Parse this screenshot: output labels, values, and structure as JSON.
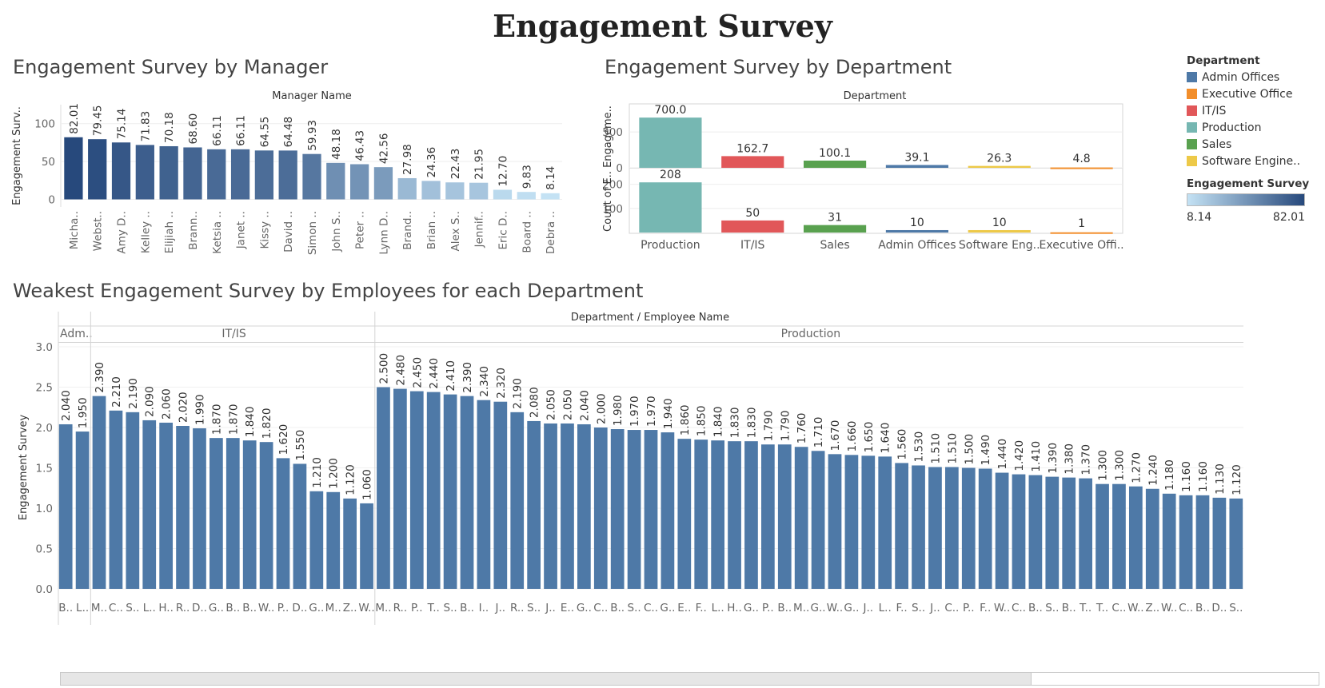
{
  "dashboard_title": "Engagement Survey",
  "sections": {
    "manager": "Engagement Survey by Manager",
    "department": "Engagement Survey by Department",
    "employees": "Weakest Engagement Survey by Employees for each Department"
  },
  "legend": {
    "title": "Department",
    "items": [
      {
        "label": "Admin Offices",
        "color": "#4e79a7"
      },
      {
        "label": "Executive Office",
        "color": "#f28e2b"
      },
      {
        "label": "IT/IS",
        "color": "#e15759"
      },
      {
        "label": "Production",
        "color": "#76b7b2"
      },
      {
        "label": "Sales",
        "color": "#59a14f"
      },
      {
        "label": "Software Engine..",
        "color": "#edc948"
      }
    ],
    "gradient_title": "Engagement Survey",
    "gradient_min": "8.14",
    "gradient_max": "82.01",
    "gradient_colors": [
      "#c4e2f4",
      "#27497c"
    ]
  },
  "scrollbar": {
    "visible_fraction": 0.77
  },
  "chart_data": [
    {
      "type": "bar",
      "title": "Engagement Survey by Manager",
      "header": "Manager Name",
      "ylabel": "Engagement Surv..",
      "ylim": [
        -10,
        125
      ],
      "yticks": [
        0,
        50,
        100
      ],
      "categories": [
        "Micha..",
        "Webst..",
        "Amy D..",
        "Kelley ..",
        "Elijiah ..",
        "Brann..",
        "Ketsia ..",
        "Janet ..",
        "Kissy ..",
        "David ..",
        "Simon ..",
        "John S..",
        "Peter ..",
        "Lynn D..",
        "Brand..",
        "Brian ..",
        "Alex S..",
        "Jennif..",
        "Eric D..",
        "Board ..",
        "Debra .."
      ],
      "values": [
        82.01,
        79.45,
        75.14,
        71.83,
        70.18,
        68.6,
        66.11,
        66.11,
        64.55,
        64.48,
        59.93,
        48.18,
        46.43,
        42.56,
        27.98,
        24.36,
        22.43,
        21.95,
        12.7,
        9.83,
        8.14
      ],
      "labels": [
        "82.01",
        "79.45",
        "75.14",
        "71.83",
        "70.18",
        "68.60",
        "66.11",
        "66.11",
        "64.55",
        "64.48",
        "59.93",
        "48.18",
        "46.43",
        "42.56",
        "27.98",
        "24.36",
        "22.43",
        "21.95",
        "12.70",
        "9.83",
        "8.14"
      ],
      "color_scale": [
        "#c4e2f4",
        "#27497c"
      ]
    },
    {
      "type": "bar",
      "title": "Engagement Survey by Department",
      "header": "Department",
      "categories": [
        "Production",
        "IT/IS",
        "Sales",
        "Admin Offices",
        "Software Eng..",
        "Executive Offi.."
      ],
      "colors": [
        "#76b7b2",
        "#e15759",
        "#59a14f",
        "#4e79a7",
        "#edc948",
        "#f28e2b"
      ],
      "series": [
        {
          "name": "Engagement Survey",
          "axis_label": "Engageme..",
          "values": [
            700.0,
            162.7,
            100.1,
            39.1,
            26.3,
            4.8
          ],
          "labels": [
            "700.0",
            "162.7",
            "100.1",
            "39.1",
            "26.3",
            "4.8"
          ],
          "ylim": [
            0,
            880
          ],
          "yticks": [
            0,
            500
          ]
        },
        {
          "name": "Count of Employees",
          "axis_label": "Count of E..",
          "values": [
            208,
            50,
            31,
            10,
            10,
            1
          ],
          "labels": [
            "208",
            "50",
            "31",
            "10",
            "10",
            "1"
          ],
          "ylim": [
            0,
            265
          ],
          "yticks": [
            100,
            200
          ]
        }
      ],
      "shared_axis_label": "Count of E.. Engageme.."
    },
    {
      "type": "bar",
      "title": "Weakest Engagement Survey by Employees for each Department",
      "header": "Department  /  Employee Name",
      "ylabel": "Engagement Survey",
      "ylim": [
        -0.05,
        3.05
      ],
      "yticks": [
        "0.0",
        "0.5",
        "1.0",
        "1.5",
        "2.0",
        "2.5",
        "3.0"
      ],
      "bar_color": "#4e79a7",
      "groups": [
        {
          "name": "Adm..",
          "categories": [
            "B..",
            "L.."
          ],
          "values": [
            2.04,
            1.95
          ],
          "labels": [
            "2.040",
            "1.950"
          ]
        },
        {
          "name": "IT/IS",
          "categories": [
            "M..",
            "C..",
            "S..",
            "L..",
            "H..",
            "R..",
            "D..",
            "G..",
            "B..",
            "B..",
            "W..",
            "P..",
            "D..",
            "G..",
            "M..",
            "Z..",
            "W.."
          ],
          "values": [
            2.39,
            2.21,
            2.19,
            2.09,
            2.06,
            2.02,
            1.99,
            1.87,
            1.87,
            1.84,
            1.82,
            1.62,
            1.55,
            1.21,
            1.2,
            1.12,
            1.06
          ],
          "labels": [
            "2.390",
            "2.210",
            "2.190",
            "2.090",
            "2.060",
            "2.020",
            "1.990",
            "1.870",
            "1.870",
            "1.840",
            "1.820",
            "1.620",
            "1.550",
            "1.210",
            "1.200",
            "1.120",
            "1.060"
          ]
        },
        {
          "name": "Production",
          "categories": [
            "M..",
            "R..",
            "P..",
            "T..",
            "S..",
            "B..",
            "I..",
            "J..",
            "R..",
            "S..",
            "J..",
            "E..",
            "G..",
            "C..",
            "B..",
            "S..",
            "C..",
            "G..",
            "E..",
            "F..",
            "L..",
            "H..",
            "G..",
            "P..",
            "B..",
            "M..",
            "G..",
            "W..",
            "G..",
            "J..",
            "L..",
            "F..",
            "S..",
            "J..",
            "C..",
            "P..",
            "F..",
            "W..",
            "C..",
            "B..",
            "S..",
            "B..",
            "T..",
            "T..",
            "C..",
            "W..",
            "Z..",
            "W..",
            "C..",
            "B..",
            "D..",
            "S.."
          ],
          "values": [
            2.5,
            2.48,
            2.45,
            2.44,
            2.41,
            2.39,
            2.34,
            2.32,
            2.19,
            2.08,
            2.05,
            2.05,
            2.04,
            2.0,
            1.98,
            1.97,
            1.97,
            1.94,
            1.86,
            1.85,
            1.84,
            1.83,
            1.83,
            1.79,
            1.79,
            1.76,
            1.71,
            1.67,
            1.66,
            1.65,
            1.64,
            1.56,
            1.53,
            1.51,
            1.51,
            1.5,
            1.49,
            1.44,
            1.42,
            1.41,
            1.39,
            1.38,
            1.37,
            1.3,
            1.3,
            1.27,
            1.24,
            1.18,
            1.16,
            1.16,
            1.13,
            1.12
          ],
          "labels": [
            "2.500",
            "2.480",
            "2.450",
            "2.440",
            "2.410",
            "2.390",
            "2.340",
            "2.320",
            "2.190",
            "2.080",
            "2.050",
            "2.050",
            "2.040",
            "2.000",
            "1.980",
            "1.970",
            "1.970",
            "1.940",
            "1.860",
            "1.850",
            "1.840",
            "1.830",
            "1.830",
            "1.790",
            "1.790",
            "1.760",
            "1.710",
            "1.670",
            "1.660",
            "1.650",
            "1.640",
            "1.560",
            "1.530",
            "1.510",
            "1.510",
            "1.500",
            "1.490",
            "1.440",
            "1.420",
            "1.410",
            "1.390",
            "1.380",
            "1.370",
            "1.300",
            "1.300",
            "1.270",
            "1.240",
            "1.180",
            "1.160",
            "1.160",
            "1.130",
            "1.120"
          ]
        }
      ]
    }
  ]
}
